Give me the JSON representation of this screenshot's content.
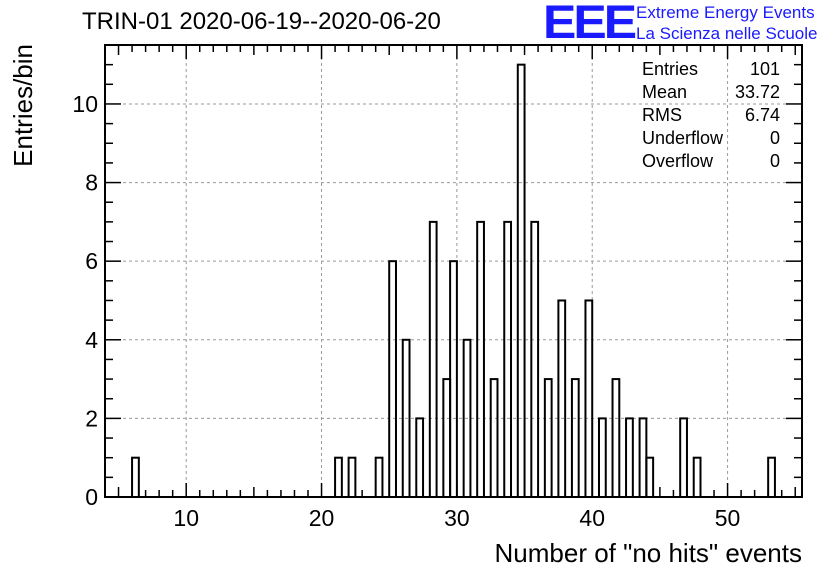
{
  "header": {
    "title": "TRIN-01 2020-06-19--2020-06-20",
    "logo_text": "EEE",
    "logo_line1": "Extreme Energy Events",
    "logo_line2": "La Scienza nelle Scuole",
    "logo_color": "#1a1aff"
  },
  "stats": [
    {
      "label": "Entries",
      "value": "101"
    },
    {
      "label": "Mean",
      "value": "33.72"
    },
    {
      "label": "RMS",
      "value": "6.74"
    },
    {
      "label": "Underflow",
      "value": "0"
    },
    {
      "label": "Overflow",
      "value": "0"
    }
  ],
  "chart_data": {
    "type": "bar",
    "histogram": true,
    "title": "TRIN-01 2020-06-19--2020-06-20",
    "xlabel": "Number of \"no hits\" events",
    "ylabel": "Entries/bin",
    "xlim": [
      4,
      55.5
    ],
    "ylim": [
      0,
      11.5
    ],
    "bin_width": 0.5,
    "x_ticks": [
      10,
      20,
      30,
      40,
      50
    ],
    "y_ticks": [
      0,
      2,
      4,
      6,
      8,
      10
    ],
    "grid": true,
    "bins": [
      {
        "x": 6,
        "count": 1
      },
      {
        "x": 21,
        "count": 1
      },
      {
        "x": 22,
        "count": 1
      },
      {
        "x": 24,
        "count": 1
      },
      {
        "x": 25,
        "count": 6
      },
      {
        "x": 26,
        "count": 4
      },
      {
        "x": 27,
        "count": 2
      },
      {
        "x": 28,
        "count": 7
      },
      {
        "x": 29,
        "count": 3
      },
      {
        "x": 29.5,
        "count": 6
      },
      {
        "x": 30.5,
        "count": 4
      },
      {
        "x": 31.5,
        "count": 7
      },
      {
        "x": 32.5,
        "count": 3
      },
      {
        "x": 33.5,
        "count": 7
      },
      {
        "x": 34.5,
        "count": 11
      },
      {
        "x": 35.5,
        "count": 7
      },
      {
        "x": 36.5,
        "count": 3
      },
      {
        "x": 37.5,
        "count": 5
      },
      {
        "x": 38.5,
        "count": 3
      },
      {
        "x": 39.5,
        "count": 5
      },
      {
        "x": 40.5,
        "count": 2
      },
      {
        "x": 41.5,
        "count": 3
      },
      {
        "x": 42.5,
        "count": 2
      },
      {
        "x": 43.5,
        "count": 2
      },
      {
        "x": 44,
        "count": 1
      },
      {
        "x": 46.5,
        "count": 2
      },
      {
        "x": 47.5,
        "count": 1
      },
      {
        "x": 53,
        "count": 1
      }
    ]
  }
}
